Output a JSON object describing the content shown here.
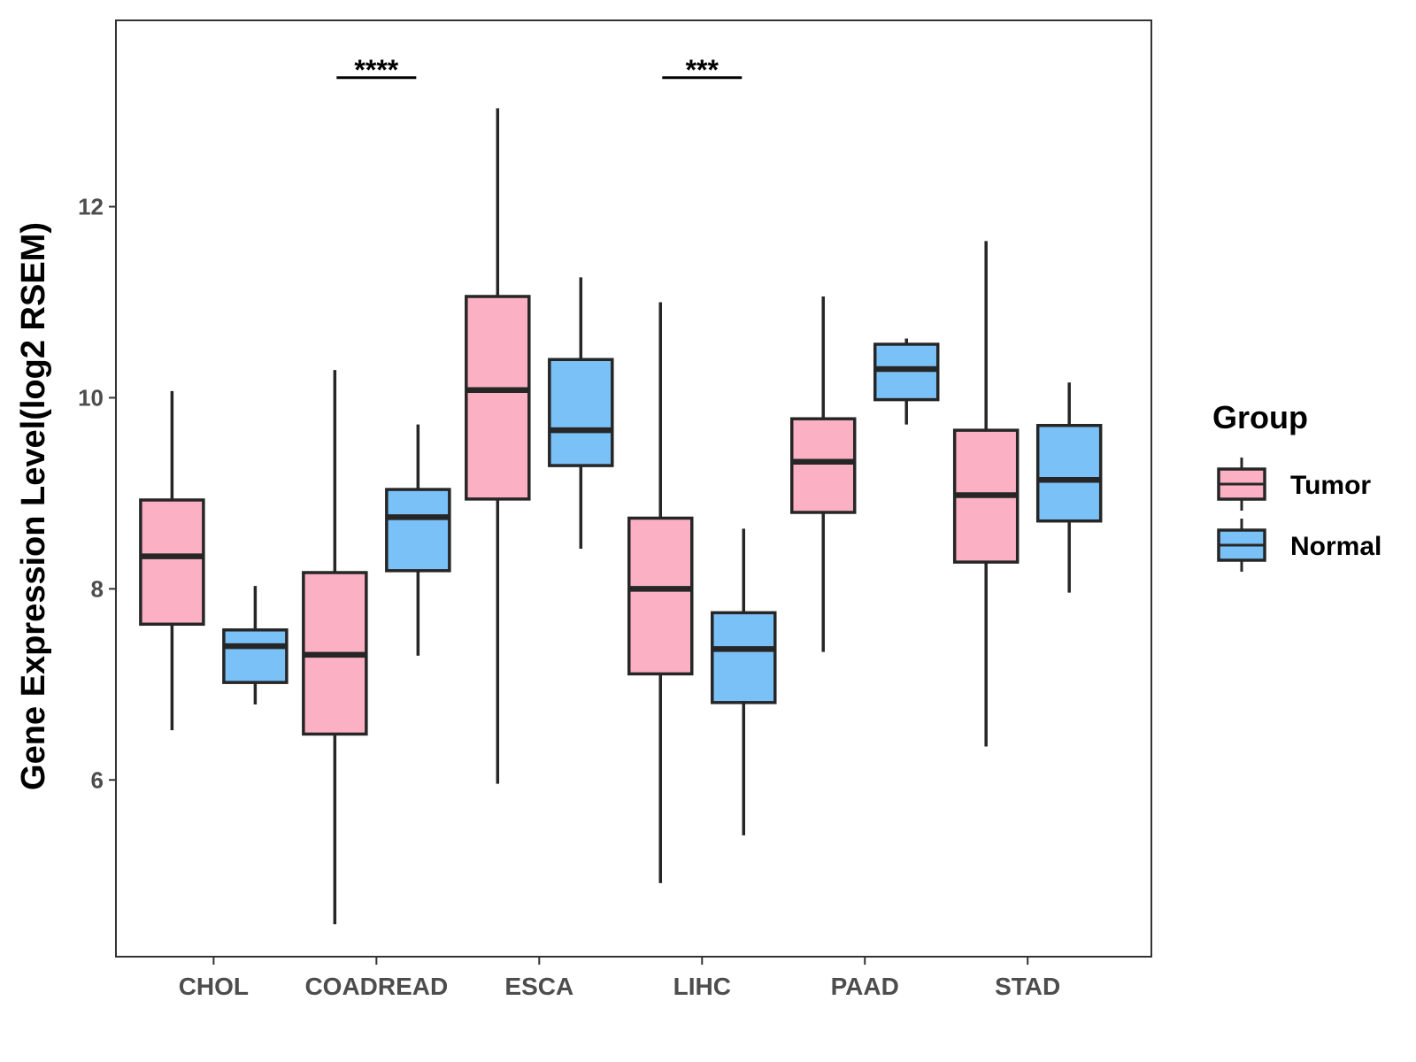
{
  "chart_data": {
    "type": "boxplot",
    "title": "",
    "xlabel": "",
    "ylabel": "Gene Expression Level(log2 RSEM)",
    "ylim": [
      4.15,
      13.95
    ],
    "yticks": [
      6,
      8,
      10,
      12
    ],
    "ytick_labels": [
      "6",
      "8",
      "10",
      "12"
    ],
    "grid": false,
    "legend": {
      "title": "Group",
      "position": "right",
      "entries": [
        "Tumor",
        "Normal"
      ]
    },
    "categories": [
      "CHOL",
      "COADREAD",
      "ESCA",
      "LIHC",
      "PAAD",
      "STAD"
    ],
    "series": [
      {
        "name": "Tumor",
        "color": "#FBB1C3",
        "boxes": [
          {
            "category": "CHOL",
            "min": 6.52,
            "q1": 7.63,
            "median": 8.34,
            "q3": 8.93,
            "max": 10.07
          },
          {
            "category": "COADREAD",
            "min": 4.49,
            "q1": 6.48,
            "median": 7.31,
            "q3": 8.17,
            "max": 10.29
          },
          {
            "category": "ESCA",
            "min": 5.96,
            "q1": 8.94,
            "median": 10.08,
            "q3": 11.06,
            "max": 13.03
          },
          {
            "category": "LIHC",
            "min": 4.92,
            "q1": 7.11,
            "median": 8.0,
            "q3": 8.74,
            "max": 11.0
          },
          {
            "category": "PAAD",
            "min": 7.34,
            "q1": 8.8,
            "median": 9.33,
            "q3": 9.78,
            "max": 11.06
          },
          {
            "category": "STAD",
            "min": 6.35,
            "q1": 8.28,
            "median": 8.98,
            "q3": 9.66,
            "max": 11.64
          }
        ]
      },
      {
        "name": "Normal",
        "color": "#7AC1F7",
        "boxes": [
          {
            "category": "CHOL",
            "min": 6.79,
            "q1": 7.02,
            "median": 7.4,
            "q3": 7.57,
            "max": 8.03
          },
          {
            "category": "COADREAD",
            "min": 7.3,
            "q1": 8.19,
            "median": 8.75,
            "q3": 9.04,
            "max": 9.72
          },
          {
            "category": "ESCA",
            "min": 8.42,
            "q1": 9.29,
            "median": 9.66,
            "q3": 10.4,
            "max": 11.26
          },
          {
            "category": "LIHC",
            "min": 5.42,
            "q1": 6.81,
            "median": 7.37,
            "q3": 7.75,
            "max": 8.63
          },
          {
            "category": "PAAD",
            "min": 9.72,
            "q1": 9.98,
            "median": 10.3,
            "q3": 10.56,
            "max": 10.62
          },
          {
            "category": "STAD",
            "min": 7.96,
            "q1": 8.71,
            "median": 9.14,
            "q3": 9.71,
            "max": 10.16
          }
        ]
      }
    ],
    "annotations": [
      {
        "category": "COADREAD",
        "text": "****",
        "y": 13.35
      },
      {
        "category": "LIHC",
        "text": "***",
        "y": 13.35
      }
    ]
  }
}
